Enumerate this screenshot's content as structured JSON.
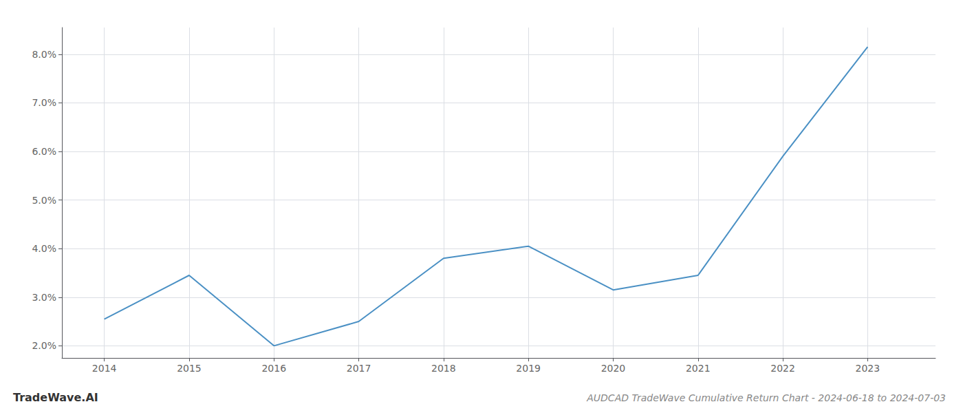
{
  "chart_data": {
    "type": "line",
    "title": "AUDCAD TradeWave Cumulative Return Chart - 2024-06-18 to 2024-07-03",
    "annotations": [
      "TradeWave.AI"
    ],
    "x": [
      2014,
      2015,
      2016,
      2017,
      2018,
      2019,
      2020,
      2021,
      2022,
      2023
    ],
    "values": [
      2.55,
      3.45,
      2.0,
      2.5,
      3.8,
      4.05,
      3.15,
      3.45,
      5.9,
      8.15
    ],
    "color": "#4a90c4",
    "xlim": [
      2013.5,
      2023.8
    ],
    "xticks": [
      2014,
      2015,
      2016,
      2017,
      2018,
      2019,
      2020,
      2021,
      2022,
      2023
    ],
    "ylim": [
      1.75,
      8.55
    ],
    "yticks": [
      {
        "value": 2.0,
        "label": "2.0%"
      },
      {
        "value": 3.0,
        "label": "3.0%"
      },
      {
        "value": 4.0,
        "label": "4.0%"
      },
      {
        "value": 5.0,
        "label": "5.0%"
      },
      {
        "value": 6.0,
        "label": "6.0%"
      },
      {
        "value": 7.0,
        "label": "7.0%"
      },
      {
        "value": 8.0,
        "label": "8.0%"
      }
    ],
    "grid": true
  }
}
